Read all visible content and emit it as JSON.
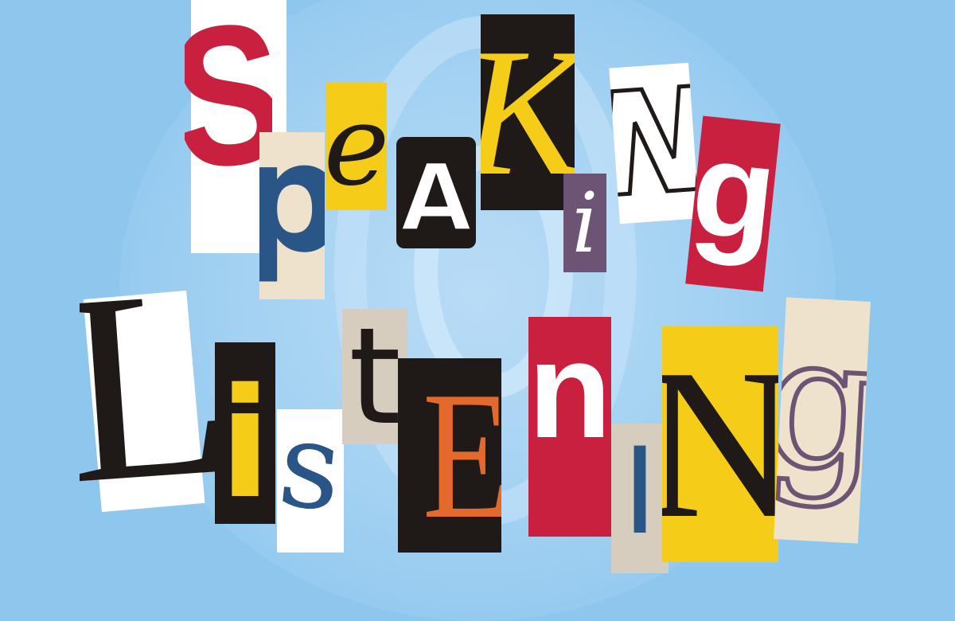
{
  "colors": {
    "background": "#8ec7ee",
    "red": "#c8203e",
    "yellow": "#f5cd18",
    "black": "#1f1a17",
    "navy": "#2a5587",
    "purple": "#6d5474",
    "orange": "#e36a2c",
    "beige": "#efe2cd",
    "white": "#ffffff",
    "tan": "#d7cdbf"
  },
  "words": {
    "speaking": {
      "letters": [
        "S",
        "p",
        "e",
        "A",
        "K",
        "i",
        "N",
        "g"
      ]
    },
    "listening": {
      "letters": [
        "L",
        "i",
        "s",
        "t",
        "E",
        "n",
        "I",
        "N",
        "g"
      ]
    }
  }
}
